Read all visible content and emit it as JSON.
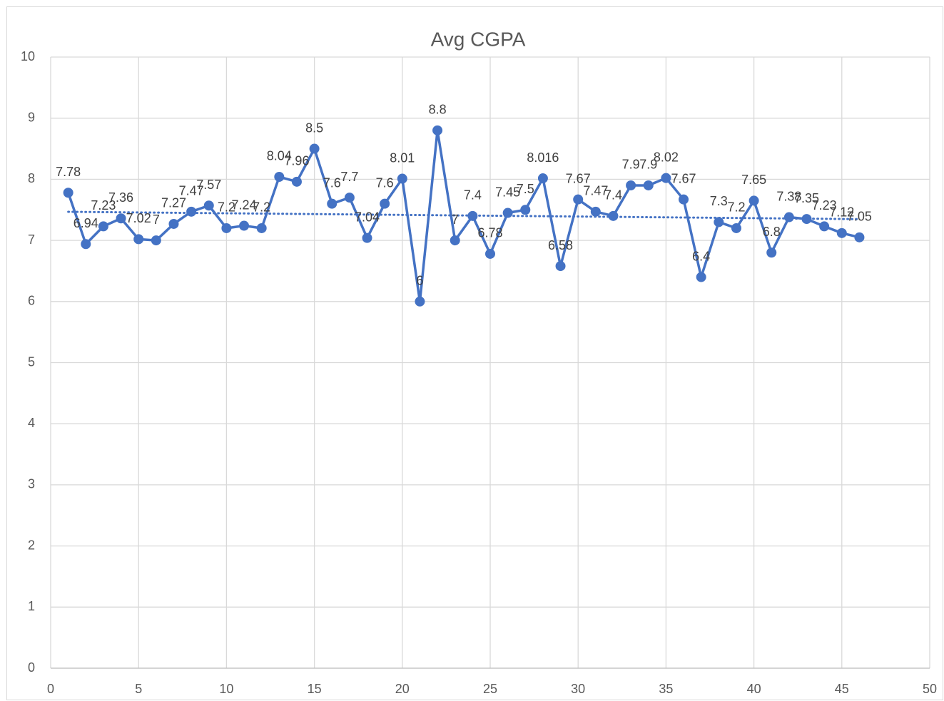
{
  "chart_data": {
    "type": "line",
    "title": "Avg CGPA",
    "x": [
      1,
      2,
      3,
      4,
      5,
      6,
      7,
      8,
      9,
      10,
      11,
      12,
      13,
      14,
      15,
      16,
      17,
      18,
      19,
      20,
      21,
      22,
      23,
      24,
      25,
      26,
      27,
      28,
      29,
      30,
      31,
      32,
      33,
      34,
      35,
      36,
      37,
      38,
      39,
      40,
      41,
      42,
      43,
      44,
      45,
      46
    ],
    "series": [
      {
        "name": "Avg CGPA",
        "color": "#4472c4",
        "values": [
          7.78,
          6.94,
          7.23,
          7.36,
          7.02,
          7,
          7.27,
          7.47,
          7.57,
          7.2,
          7.24,
          7.2,
          8.04,
          7.96,
          8.5,
          7.6,
          7.7,
          7.04,
          7.6,
          8.01,
          6,
          8.8,
          7,
          7.4,
          6.78,
          7.45,
          7.5,
          8.016,
          6.58,
          7.67,
          7.47,
          7.4,
          7.9,
          7.9,
          8.02,
          7.67,
          6.4,
          7.3,
          7.2,
          7.65,
          6.8,
          7.38,
          7.35,
          7.23,
          7.12,
          7.05
        ]
      }
    ],
    "xlim": [
      0,
      50
    ],
    "xticks": [
      0,
      5,
      10,
      15,
      20,
      25,
      30,
      35,
      40,
      45,
      50
    ],
    "ylim": [
      0,
      10
    ],
    "yticks": [
      0,
      1,
      2,
      3,
      4,
      5,
      6,
      7,
      8,
      9,
      10
    ],
    "grid": true,
    "trendline": "linear",
    "data_labels": true
  }
}
